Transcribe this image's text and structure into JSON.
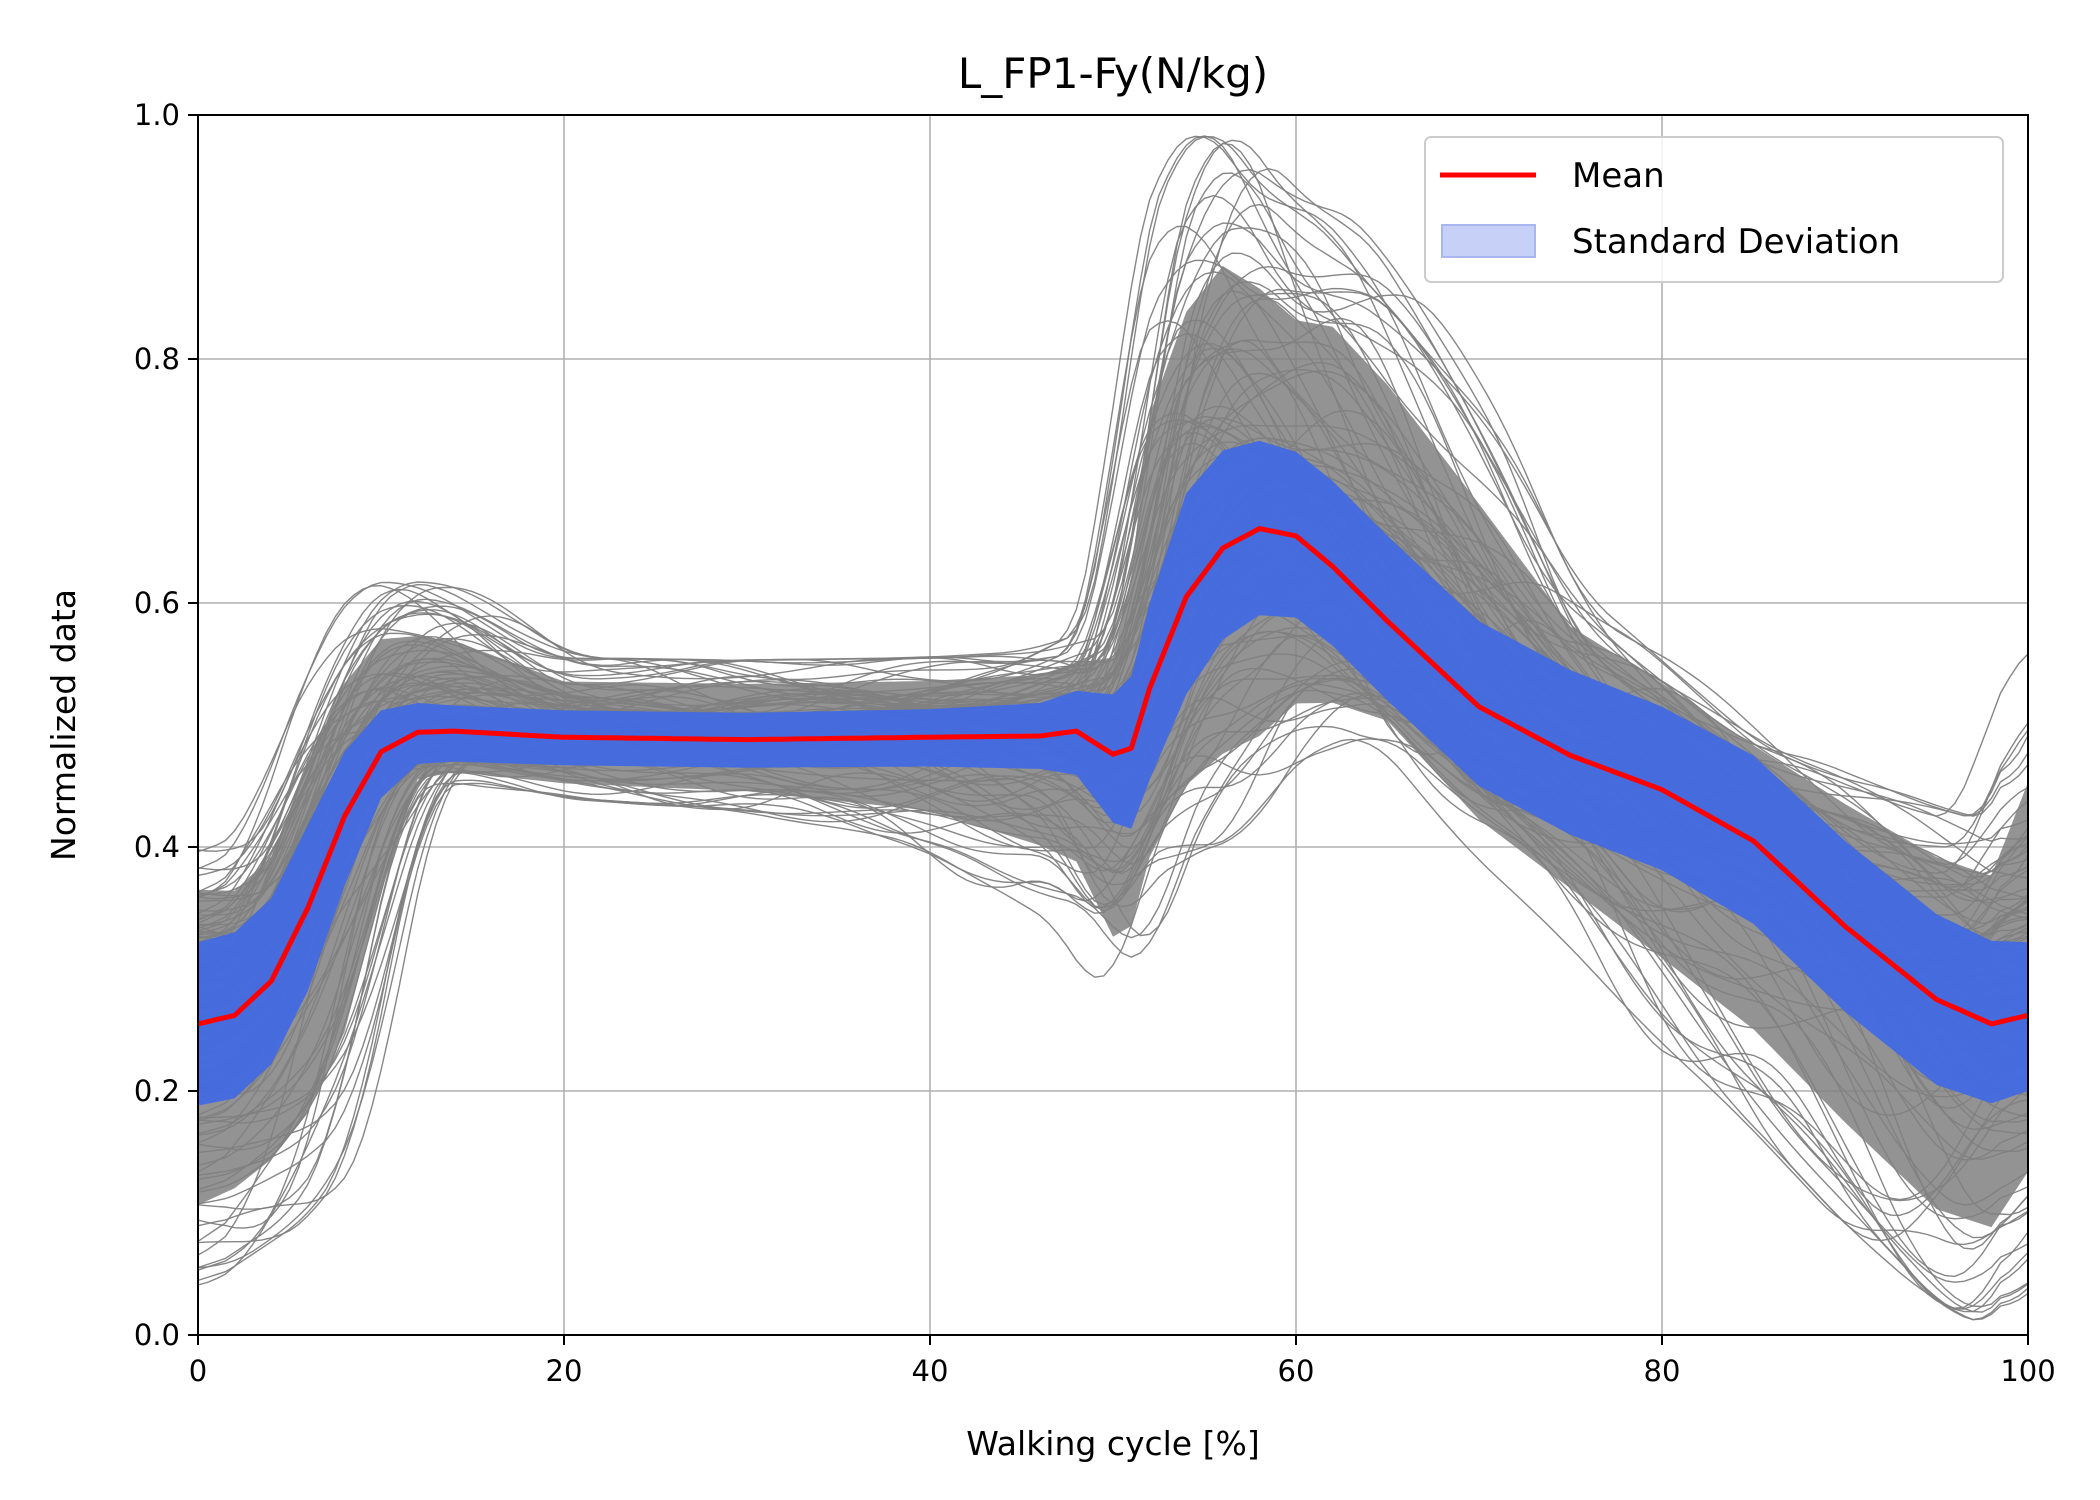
{
  "chart_data": {
    "type": "line",
    "title": "L_FP1-Fy(N/kg)",
    "xlabel": "Walking cycle [%]",
    "ylabel": "Normalized data",
    "xlim": [
      0,
      100
    ],
    "ylim": [
      0.0,
      1.0
    ],
    "xticks": [
      "0",
      "20",
      "40",
      "60",
      "80",
      "100"
    ],
    "yticks": [
      "0.0",
      "0.2",
      "0.4",
      "0.6",
      "0.8",
      "1.0"
    ],
    "grid": true,
    "legend_position": "top-right",
    "colors": {
      "mean": "#ff0000",
      "std_band": "#4169e1",
      "legend_std_patch": "#c7d0f6",
      "trials": "#808080"
    },
    "x": [
      0,
      2,
      4,
      6,
      8,
      10,
      12,
      14,
      20,
      30,
      40,
      46,
      48,
      50,
      51,
      52,
      54,
      56,
      58,
      60,
      62,
      65,
      70,
      75,
      80,
      85,
      90,
      95,
      98,
      100
    ],
    "series": [
      {
        "name": "Mean",
        "values": [
          0.255,
          0.262,
          0.29,
          0.35,
          0.425,
          0.478,
          0.494,
          0.495,
          0.49,
          0.488,
          0.49,
          0.491,
          0.495,
          0.476,
          0.481,
          0.53,
          0.605,
          0.645,
          0.661,
          0.655,
          0.63,
          0.585,
          0.515,
          0.475,
          0.447,
          0.405,
          0.335,
          0.275,
          0.255,
          0.262
        ]
      },
      {
        "name": "Standard Deviation",
        "upper": [
          0.322,
          0.33,
          0.358,
          0.418,
          0.478,
          0.512,
          0.518,
          0.516,
          0.512,
          0.51,
          0.513,
          0.518,
          0.528,
          0.525,
          0.54,
          0.6,
          0.69,
          0.725,
          0.733,
          0.724,
          0.7,
          0.655,
          0.585,
          0.545,
          0.515,
          0.475,
          0.405,
          0.345,
          0.323,
          0.322
        ],
        "lower": [
          0.188,
          0.194,
          0.222,
          0.282,
          0.368,
          0.44,
          0.468,
          0.47,
          0.467,
          0.465,
          0.466,
          0.464,
          0.459,
          0.42,
          0.415,
          0.455,
          0.525,
          0.57,
          0.59,
          0.588,
          0.565,
          0.52,
          0.45,
          0.41,
          0.381,
          0.337,
          0.265,
          0.205,
          0.19,
          0.2
        ]
      }
    ],
    "trial_envelope": {
      "upper": [
        0.4,
        0.392,
        0.42,
        0.51,
        0.58,
        0.618,
        0.618,
        0.612,
        0.555,
        0.553,
        0.555,
        0.56,
        0.57,
        0.58,
        0.69,
        0.88,
        0.96,
        1.0,
        0.96,
        0.92,
        0.93,
        0.88,
        0.76,
        0.61,
        0.55,
        0.49,
        0.46,
        0.43,
        0.42,
        0.56
      ],
      "lower": [
        0.04,
        0.06,
        0.08,
        0.1,
        0.15,
        0.3,
        0.445,
        0.455,
        0.44,
        0.43,
        0.4,
        0.35,
        0.33,
        0.25,
        0.27,
        0.34,
        0.39,
        0.4,
        0.41,
        0.46,
        0.48,
        0.49,
        0.4,
        0.33,
        0.25,
        0.18,
        0.1,
        0.02,
        0.005,
        0.08
      ]
    }
  }
}
